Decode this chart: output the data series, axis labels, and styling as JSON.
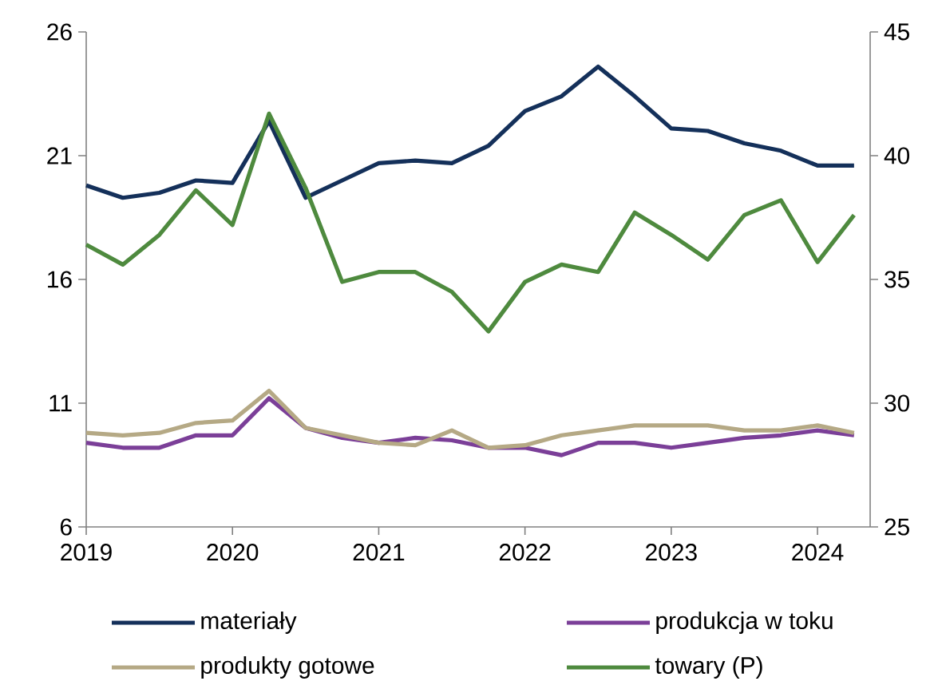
{
  "chart_data": {
    "type": "line",
    "x": [
      2019,
      2019.25,
      2019.5,
      2019.75,
      2020,
      2020.25,
      2020.5,
      2020.75,
      2021,
      2021.25,
      2021.5,
      2021.75,
      2022,
      2022.25,
      2022.5,
      2022.75,
      2023,
      2023.25,
      2023.5,
      2023.75,
      2024,
      2024.25
    ],
    "xlim": [
      2019,
      2024.36
    ],
    "xticks": [
      2019,
      2020,
      2021,
      2022,
      2023,
      2024
    ],
    "ylim": [
      6,
      26
    ],
    "yticks": [
      6,
      11,
      16,
      21,
      26
    ],
    "y2lim": [
      25,
      45
    ],
    "y2ticks": [
      25,
      30,
      35,
      40,
      45
    ],
    "legend": "bottom",
    "grid": false,
    "marker": "none",
    "line_style": "solid",
    "series": [
      {
        "name": "materiały",
        "color": "#14305a",
        "values": [
          19.8,
          19.3,
          19.5,
          20.0,
          19.9,
          22.4,
          19.3,
          20.0,
          20.7,
          20.8,
          20.7,
          21.4,
          22.8,
          23.4,
          24.6,
          23.4,
          22.1,
          22.0,
          21.5,
          21.2,
          20.6,
          20.6
        ]
      },
      {
        "name": "produkcja w toku",
        "color": "#7b3f98",
        "values": [
          9.4,
          9.2,
          9.2,
          9.7,
          9.7,
          11.2,
          10.0,
          9.6,
          9.4,
          9.6,
          9.5,
          9.2,
          9.2,
          8.9,
          9.4,
          9.4,
          9.2,
          9.4,
          9.6,
          9.7,
          9.9,
          9.7
        ]
      },
      {
        "name": "produkty gotowe",
        "color": "#b5a985",
        "values": [
          9.8,
          9.7,
          9.8,
          10.2,
          10.3,
          11.5,
          10.0,
          9.7,
          9.4,
          9.3,
          9.9,
          9.2,
          9.3,
          9.7,
          9.9,
          10.1,
          10.1,
          10.1,
          9.9,
          9.9,
          10.1,
          9.8
        ]
      },
      {
        "name": "towary (P)",
        "color": "#4e8a3e",
        "axis": "y2",
        "values": [
          36.4,
          35.6,
          36.8,
          38.6,
          37.2,
          41.7,
          38.7,
          34.9,
          35.3,
          35.3,
          34.5,
          32.9,
          34.9,
          35.6,
          35.3,
          37.7,
          36.8,
          35.8,
          37.6,
          38.2,
          35.7,
          37.6
        ]
      }
    ]
  }
}
